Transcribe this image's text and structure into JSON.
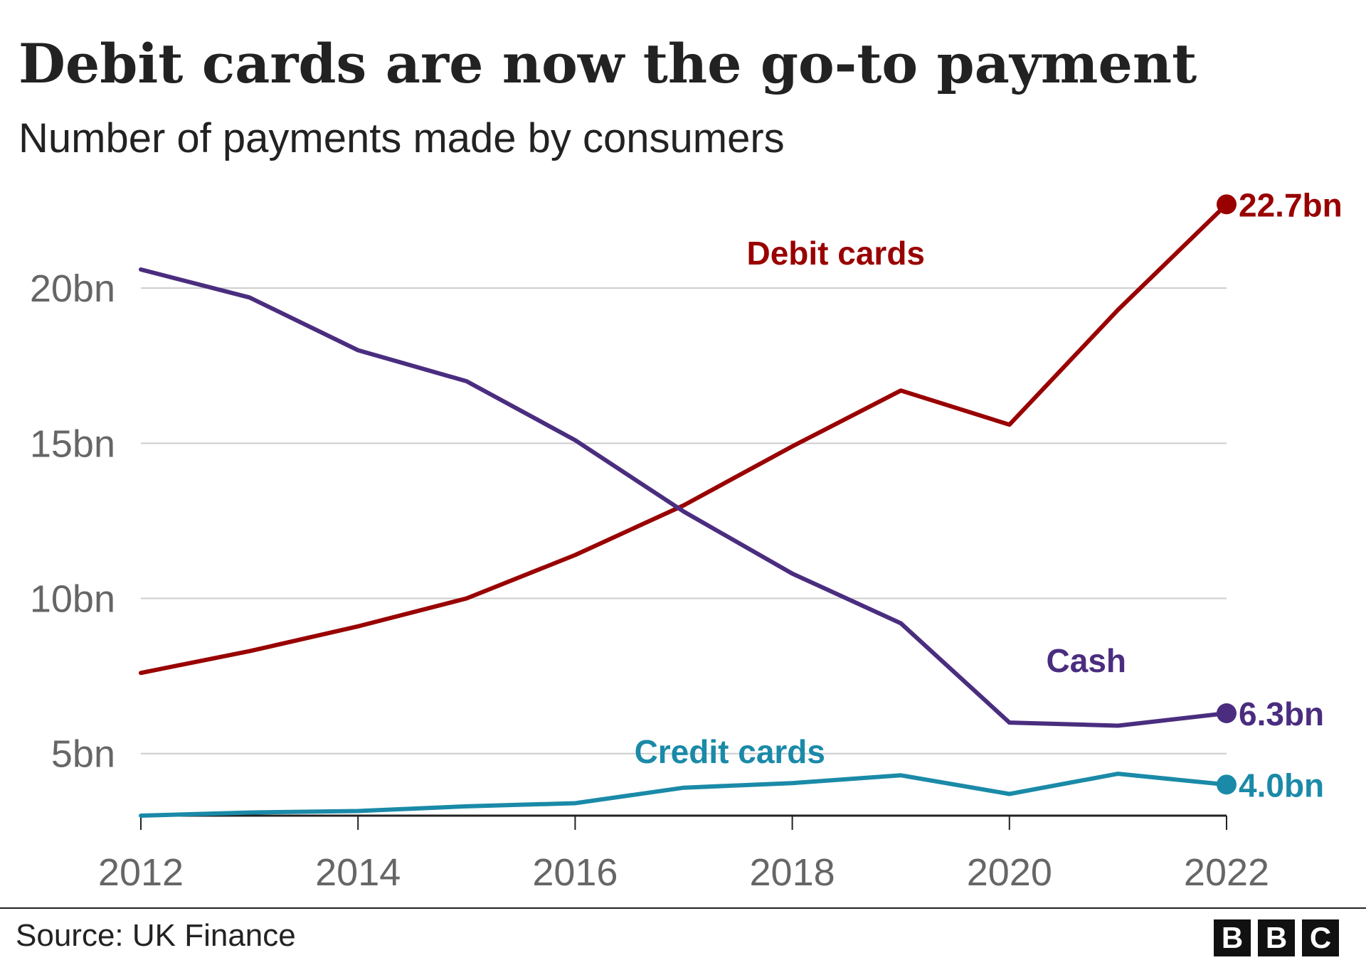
{
  "title": "Debit cards are now the go-to payment",
  "subtitle": "Number of payments made by consumers",
  "source": "Source: UK Finance",
  "logo": [
    "B",
    "B",
    "C"
  ],
  "chart_data": {
    "type": "line",
    "x": [
      2012,
      2013,
      2014,
      2015,
      2016,
      2017,
      2018,
      2019,
      2020,
      2021,
      2022
    ],
    "x_ticks": [
      2012,
      2014,
      2016,
      2018,
      2020,
      2022
    ],
    "x_tick_labels": [
      "2012",
      "2014",
      "2016",
      "2018",
      "2020",
      "2022"
    ],
    "y_ticks": [
      5,
      10,
      15,
      20
    ],
    "y_tick_labels": [
      "5bn",
      "10bn",
      "15bn",
      "20bn"
    ],
    "ylim": [
      3,
      21.7
    ],
    "grid": true,
    "series": [
      {
        "name": "Debit cards",
        "color": "#990000",
        "values": [
          7.6,
          8.3,
          9.1,
          10.0,
          11.4,
          13.0,
          14.9,
          16.7,
          15.6,
          19.3,
          22.7
        ],
        "end_label": "22.7bn"
      },
      {
        "name": "Cash",
        "color": "#4a2d7f",
        "values": [
          20.6,
          19.7,
          18.0,
          17.0,
          15.1,
          12.8,
          10.8,
          9.2,
          6.0,
          5.9,
          6.3
        ],
        "end_label": "6.3bn"
      },
      {
        "name": "Credit cards",
        "color": "#1a8aa8",
        "values": [
          3.0,
          3.1,
          3.15,
          3.3,
          3.4,
          3.9,
          4.05,
          4.3,
          3.7,
          4.35,
          4.0
        ],
        "end_label": "4.0bn"
      }
    ]
  }
}
